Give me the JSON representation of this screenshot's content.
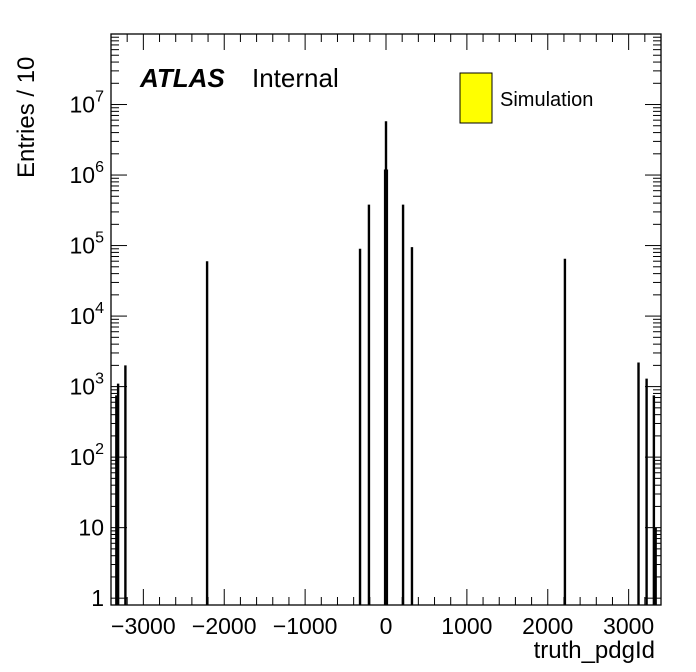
{
  "chart_data": {
    "type": "bar",
    "title": "",
    "xlabel": "truth_pdgId",
    "ylabel": "Entries / 10",
    "xlim": [
      -3400,
      3400
    ],
    "ylim": [
      0.8,
      100000000
    ],
    "y_scale": "log",
    "grid": false,
    "legend_position": "top-right",
    "x_ticks": [
      "−3000",
      "−2000",
      "−1000",
      "0",
      "1000",
      "2000",
      "3000"
    ],
    "x_tick_values": [
      -3000,
      -2000,
      -1000,
      0,
      1000,
      2000,
      3000
    ],
    "y_ticks": [
      "1",
      "10",
      "10^2",
      "10^3",
      "10^4",
      "10^5",
      "10^6",
      "10^7"
    ],
    "y_tick_values": [
      1,
      10,
      100,
      1000,
      10000,
      100000,
      1000000,
      10000000
    ],
    "series": [
      {
        "name": "Simulation",
        "color": "#ffff00",
        "x": [
          -3334,
          -3312,
          -3222,
          -2212,
          -321,
          -211,
          -11,
          0,
          11,
          211,
          321,
          2212,
          3122,
          3222,
          3312,
          3334
        ],
        "values": [
          750,
          1100,
          2000,
          60000,
          90000,
          380000,
          1200000,
          5800000,
          1200000,
          380000,
          95000,
          65000,
          2200,
          1300,
          750,
          10
        ]
      }
    ],
    "annotations": {
      "atlas_label": "ATLAS",
      "atlas_sublabel": "Internal"
    }
  }
}
